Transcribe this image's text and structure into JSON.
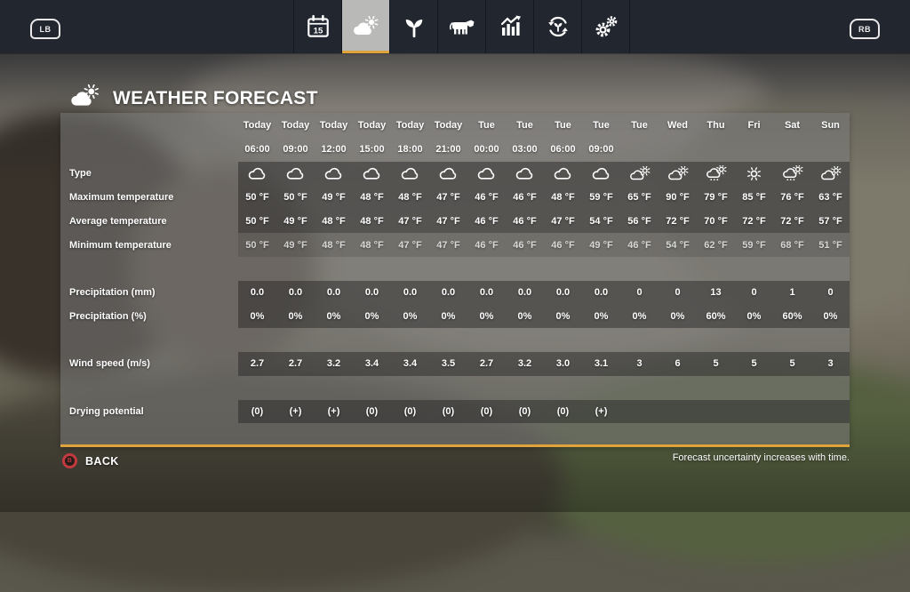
{
  "colors": {
    "accent_orange": "#e0a33c",
    "back_button_red": "#c23a40",
    "top_bar": "#22262f",
    "panel_overlay": "rgba(122,122,122,0.55)",
    "row_band": "rgba(38,38,38,0.48)"
  },
  "top_bar": {
    "left_bumper": "LB",
    "right_bumper": "RB",
    "tabs": [
      {
        "id": "calendar",
        "icon": "calendar-icon",
        "active": false,
        "calendar_day": "15"
      },
      {
        "id": "weather",
        "icon": "weather-icon",
        "active": true
      },
      {
        "id": "crops",
        "icon": "seedling-icon",
        "active": false
      },
      {
        "id": "animals",
        "icon": "cow-icon",
        "active": false
      },
      {
        "id": "statistics",
        "icon": "bar-chart-icon",
        "active": false
      },
      {
        "id": "production",
        "icon": "cycle-icon",
        "active": false
      },
      {
        "id": "settings",
        "icon": "gears-icon",
        "active": false
      }
    ]
  },
  "header": {
    "title": "WEATHER FORECAST",
    "title_icon": "sun-cloud-icon"
  },
  "forecast": {
    "columns": [
      {
        "day": "Today",
        "time": "06:00"
      },
      {
        "day": "Today",
        "time": "09:00"
      },
      {
        "day": "Today",
        "time": "12:00"
      },
      {
        "day": "Today",
        "time": "15:00"
      },
      {
        "day": "Today",
        "time": "18:00"
      },
      {
        "day": "Today",
        "time": "21:00"
      },
      {
        "day": "Tue",
        "time": "00:00"
      },
      {
        "day": "Tue",
        "time": "03:00"
      },
      {
        "day": "Tue",
        "time": "06:00"
      },
      {
        "day": "Tue",
        "time": "09:00"
      },
      {
        "day": "Tue",
        "time": ""
      },
      {
        "day": "Wed",
        "time": ""
      },
      {
        "day": "Thu",
        "time": ""
      },
      {
        "day": "Fri",
        "time": ""
      },
      {
        "day": "Sat",
        "time": ""
      },
      {
        "day": "Sun",
        "time": ""
      }
    ],
    "rows": [
      {
        "label": "Type",
        "kind": "icons",
        "band": "dark",
        "values": [
          "cloud",
          "cloud",
          "cloud",
          "cloud",
          "cloud",
          "cloud",
          "cloud",
          "cloud",
          "cloud",
          "cloud",
          "sun-cloud",
          "sun-cloud",
          "sun-cloud-rain",
          "sun",
          "sun-cloud-rain",
          "sun-cloud"
        ]
      },
      {
        "label": "Maximum temperature",
        "kind": "text",
        "band": "dark",
        "values": [
          "50 °F",
          "50 °F",
          "49 °F",
          "48 °F",
          "48 °F",
          "47 °F",
          "46 °F",
          "46 °F",
          "48 °F",
          "59 °F",
          "65 °F",
          "90 °F",
          "79 °F",
          "85 °F",
          "76 °F",
          "63 °F"
        ]
      },
      {
        "label": "Average temperature",
        "kind": "text",
        "band": "dark",
        "values": [
          "50 °F",
          "49 °F",
          "48 °F",
          "48 °F",
          "47 °F",
          "47 °F",
          "46 °F",
          "46 °F",
          "47 °F",
          "54 °F",
          "56 °F",
          "72 °F",
          "70 °F",
          "72 °F",
          "72 °F",
          "57 °F"
        ]
      },
      {
        "label": "Minimum temperature",
        "kind": "text",
        "band": "dim",
        "values": [
          "50 °F",
          "49 °F",
          "48 °F",
          "48 °F",
          "47 °F",
          "47 °F",
          "46 °F",
          "46 °F",
          "46 °F",
          "49 °F",
          "46 °F",
          "54 °F",
          "62 °F",
          "59 °F",
          "68 °F",
          "51 °F"
        ]
      },
      {
        "label": "",
        "kind": "spacer"
      },
      {
        "label": "Precipitation (mm)",
        "kind": "text",
        "band": "dark",
        "values": [
          "0.0",
          "0.0",
          "0.0",
          "0.0",
          "0.0",
          "0.0",
          "0.0",
          "0.0",
          "0.0",
          "0.0",
          "0",
          "0",
          "13",
          "0",
          "1",
          "0"
        ]
      },
      {
        "label": "Precipitation (%)",
        "kind": "text",
        "band": "dark",
        "values": [
          "0%",
          "0%",
          "0%",
          "0%",
          "0%",
          "0%",
          "0%",
          "0%",
          "0%",
          "0%",
          "0%",
          "0%",
          "60%",
          "0%",
          "60%",
          "0%"
        ]
      },
      {
        "label": "",
        "kind": "spacer"
      },
      {
        "label": "Wind speed (m/s)",
        "kind": "text",
        "band": "dark",
        "values": [
          "2.7",
          "2.7",
          "3.2",
          "3.4",
          "3.4",
          "3.5",
          "2.7",
          "3.2",
          "3.0",
          "3.1",
          "3",
          "6",
          "5",
          "5",
          "5",
          "3"
        ]
      },
      {
        "label": "",
        "kind": "spacer"
      },
      {
        "label": "Drying potential",
        "kind": "text",
        "band": "dark",
        "values": [
          "(0)",
          "(+)",
          "(+)",
          "(0)",
          "(0)",
          "(0)",
          "(0)",
          "(0)",
          "(0)",
          "(+)",
          "",
          "",
          "",
          "",
          "",
          ""
        ]
      },
      {
        "label": "",
        "kind": "spacer"
      }
    ]
  },
  "footer": {
    "back_button": "B",
    "back_label": "BACK",
    "note": "Forecast uncertainty increases with time."
  }
}
